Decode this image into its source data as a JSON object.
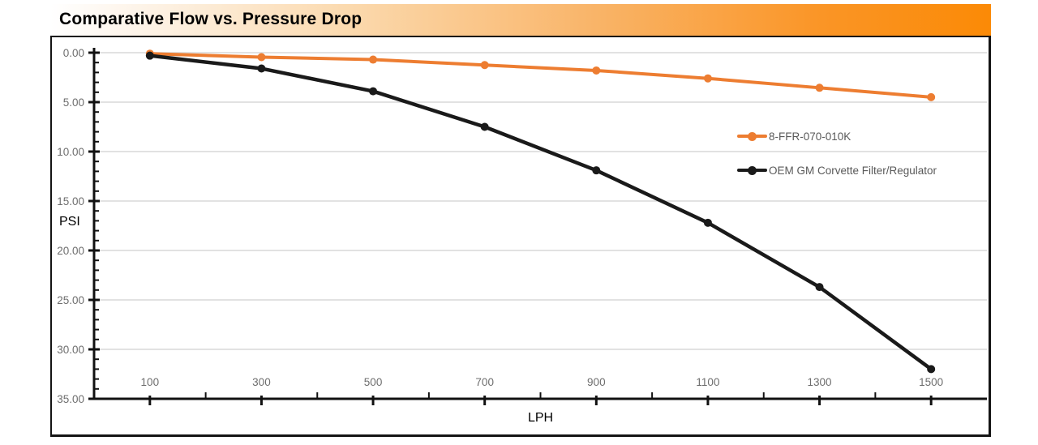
{
  "header": {
    "title": "Comparative Flow vs. Pressure Drop"
  },
  "colors": {
    "header_orange": "#fb8a06",
    "series_orange": "#ED7D31",
    "series_black": "#1a1a1a",
    "gridline_gray": "#d9d9d9",
    "tick_label_gray": "#6e6e6e",
    "legend_text_gray": "#595959"
  },
  "chart_data": {
    "type": "line",
    "title": "Comparative Flow vs. Pressure Drop",
    "xlabel": "LPH",
    "ylabel": "PSI",
    "x": [
      100,
      300,
      500,
      700,
      900,
      1100,
      1300,
      1500
    ],
    "xticks": [
      "100",
      "300",
      "500",
      "700",
      "900",
      "1100",
      "1300",
      "1500"
    ],
    "yticks": [
      "0.00",
      "5.00",
      "10.00",
      "15.00",
      "20.00",
      "25.00",
      "30.00",
      "35.00"
    ],
    "xlim": [
      0,
      1600
    ],
    "ylim": [
      0,
      35
    ],
    "y_inverted": true,
    "grid": "horizontal",
    "legend_position": "inside-right",
    "series": [
      {
        "name": "8-FFR-070-010K",
        "color": "#ED7D31",
        "values": [
          0.1,
          0.45,
          0.7,
          1.25,
          1.8,
          2.6,
          3.55,
          4.5
        ]
      },
      {
        "name": "OEM GM Corvette Filter/Regulator",
        "color": "#1a1a1a",
        "values": [
          0.3,
          1.6,
          3.9,
          7.5,
          11.9,
          17.2,
          23.7,
          32.0
        ]
      }
    ]
  }
}
